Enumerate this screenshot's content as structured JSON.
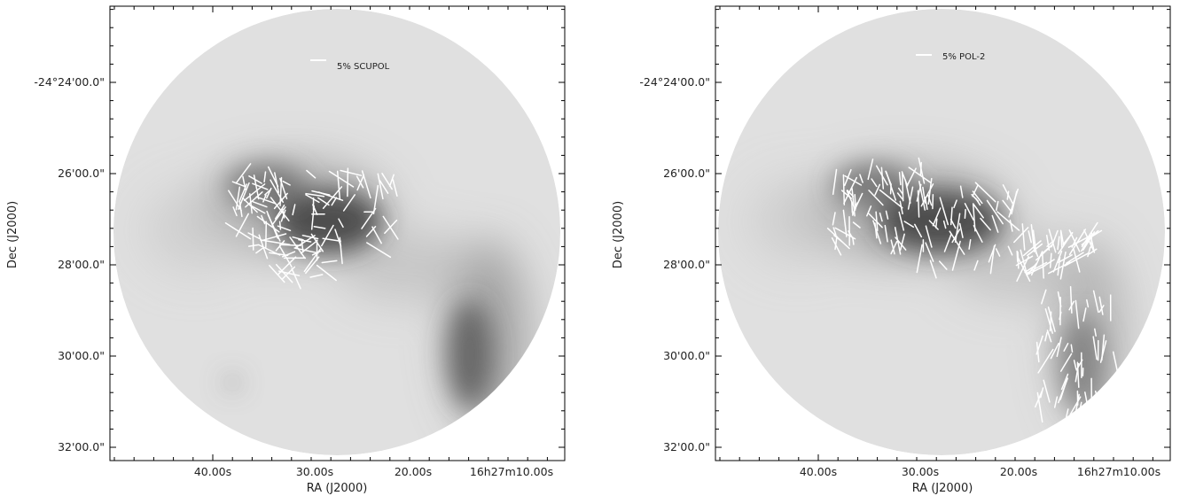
{
  "chart_data": [
    {
      "type": "other",
      "panel": "left",
      "xlabel": "RA (J2000)",
      "ylabel": "Dec (J2000)",
      "x_ticks": [
        "40.00s",
        "30.00s",
        "20.00s",
        "16h27m10.00s"
      ],
      "y_ticks": [
        "-24°24'00.0\"",
        "26'00.0\"",
        "28'00.0\"",
        "30'00.0\"",
        "32'00.0\""
      ],
      "scale_bar_label": "5% SCUPOL",
      "colors": {
        "vectors": "#ffffff",
        "background": "#dcdcdc",
        "emission": "#3a3a3a"
      },
      "grid": false
    },
    {
      "type": "other",
      "panel": "right",
      "xlabel": "RA (J2000)",
      "ylabel": "Dec (J2000)",
      "x_ticks": [
        "40.00s",
        "30.00s",
        "20.00s",
        "16h27m10.00s"
      ],
      "y_ticks": [
        "-24°24'00.0\"",
        "26'00.0\"",
        "28'00.0\"",
        "30'00.0\"",
        "32'00.0\""
      ],
      "scale_bar_label": "5% POL-2",
      "colors": {
        "vectors": "#ffffff",
        "background": "#dcdcdc",
        "emission": "#3a3a3a"
      },
      "grid": false
    }
  ]
}
